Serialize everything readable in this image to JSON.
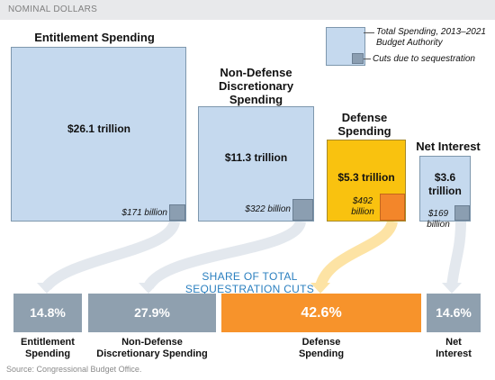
{
  "header": {
    "title": "NOMINAL DOLLARS"
  },
  "legend": {
    "total_label": "Total Spending, 2013–2021",
    "total_label_2": "Budget Authority",
    "cuts_label": "Cuts due to sequestration",
    "colors": {
      "total": "#c5d9ee",
      "cuts": "#8b9eb1"
    }
  },
  "share_title": {
    "line1": "SHARE OF TOTAL",
    "line2": "SEQUESTRATION CUTS"
  },
  "source": "Source: Congressional Budget Office.",
  "chart_data": {
    "type": "area",
    "categories": [
      "Entitlement Spending",
      "Non-Defense Discretionary Spending",
      "Defense Spending",
      "Net Interest"
    ],
    "title": "",
    "series": [
      {
        "name": "Total Spending, 2013–2021 Budget Authority",
        "values": [
          26.1,
          11.3,
          5.3,
          3.6
        ],
        "unit": "trillion",
        "labels": [
          "$26.1 trillion",
          "$11.3 trillion",
          "$5.3 trillion",
          "$3.6 trillion"
        ]
      },
      {
        "name": "Cuts due to sequestration",
        "values": [
          171,
          322,
          492,
          169
        ],
        "unit": "billion",
        "labels": [
          "$171 billion",
          "$322 billion",
          "$492 billion",
          "$169 billion"
        ]
      }
    ],
    "share_of_total_cuts": {
      "values": [
        14.8,
        27.9,
        42.6,
        14.6
      ],
      "labels": [
        "14.8%",
        "27.9%",
        "42.6%",
        "14.6%"
      ]
    },
    "category_labels": {
      "top": [
        [
          "Entitlement Spending"
        ],
        [
          "Non-Defense",
          "Discretionary",
          "Spending"
        ],
        [
          "Defense",
          "Spending"
        ],
        [
          "Net Interest"
        ]
      ],
      "bottom": [
        [
          "Entitlement",
          "Spending"
        ],
        [
          "Non-Defense",
          "Discretionary Spending"
        ],
        [
          "Defense",
          "Spending"
        ],
        [
          "Net",
          "Interest"
        ]
      ]
    },
    "colors": {
      "total": "#c5d9ee",
      "cuts": "#8b9eb1",
      "defense_total": "#f9c20f",
      "defense_cuts": "#f3862a",
      "share": "#8fa0af",
      "share_highlight": "#f7932b"
    }
  }
}
